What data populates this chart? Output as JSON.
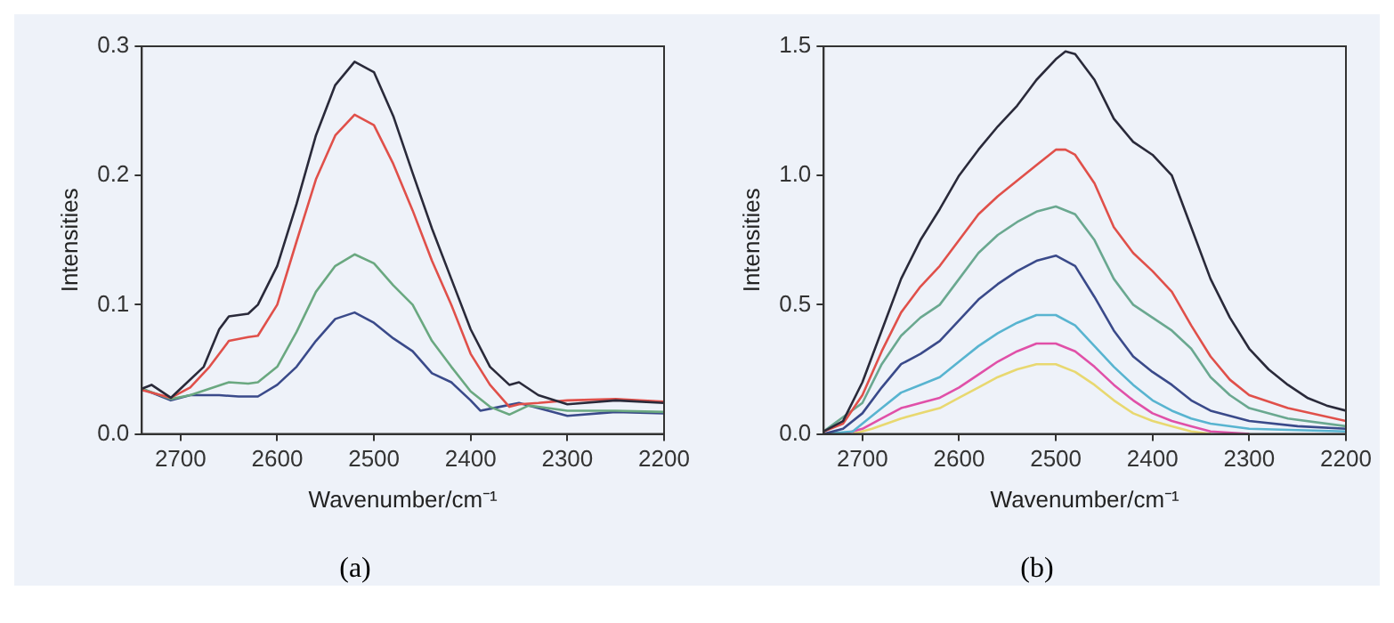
{
  "chart_data": [
    {
      "type": "line",
      "xlabel": "Wavenumber/cm⁻¹",
      "ylabel": "Intensities",
      "annotations": [
        "(a)"
      ],
      "xlim": [
        2740,
        2200
      ],
      "xticks": [
        2700,
        2600,
        2500,
        2400,
        2300,
        2200
      ],
      "ylim": [
        0,
        0.3
      ],
      "yticks": [
        {
          "value": 0,
          "label": "0.0"
        },
        0.1,
        0.2,
        0.3
      ],
      "grid": false,
      "legend": false,
      "marker": "none",
      "line_style": "solid",
      "series": [
        {
          "color": "#2a2a3a",
          "x": [
            2740,
            2730,
            2710,
            2700,
            2676,
            2660,
            2650,
            2630,
            2620,
            2600,
            2580,
            2560,
            2540,
            2520,
            2500,
            2480,
            2460,
            2440,
            2420,
            2400,
            2380,
            2360,
            2350,
            2330,
            2300,
            2250,
            2200
          ],
          "values": [
            0.035,
            0.038,
            0.028,
            0.035,
            0.052,
            0.081,
            0.091,
            0.093,
            0.1,
            0.13,
            0.178,
            0.231,
            0.27,
            0.288,
            0.28,
            0.246,
            0.202,
            0.159,
            0.12,
            0.081,
            0.052,
            0.038,
            0.04,
            0.03,
            0.023,
            0.026,
            0.024
          ]
        },
        {
          "color": "#e0504a",
          "x": [
            2740,
            2720,
            2710,
            2690,
            2670,
            2650,
            2630,
            2620,
            2600,
            2580,
            2560,
            2540,
            2520,
            2500,
            2480,
            2460,
            2440,
            2420,
            2400,
            2380,
            2360,
            2350,
            2330,
            2300,
            2250,
            2200
          ],
          "values": [
            0.034,
            0.03,
            0.028,
            0.036,
            0.052,
            0.072,
            0.075,
            0.076,
            0.1,
            0.149,
            0.197,
            0.231,
            0.247,
            0.239,
            0.209,
            0.173,
            0.134,
            0.1,
            0.062,
            0.038,
            0.021,
            0.023,
            0.024,
            0.026,
            0.027,
            0.025
          ]
        },
        {
          "color": "#6aa880",
          "x": [
            2740,
            2710,
            2690,
            2670,
            2650,
            2630,
            2620,
            2600,
            2580,
            2560,
            2540,
            2520,
            2500,
            2480,
            2460,
            2440,
            2420,
            2400,
            2380,
            2360,
            2340,
            2300,
            2250,
            2200
          ],
          "values": [
            0.035,
            0.027,
            0.03,
            0.035,
            0.04,
            0.039,
            0.04,
            0.052,
            0.079,
            0.11,
            0.13,
            0.139,
            0.132,
            0.115,
            0.1,
            0.072,
            0.052,
            0.033,
            0.021,
            0.015,
            0.022,
            0.018,
            0.018,
            0.017
          ]
        },
        {
          "color": "#3a4a8a",
          "x": [
            2740,
            2710,
            2690,
            2660,
            2640,
            2620,
            2600,
            2580,
            2560,
            2540,
            2520,
            2500,
            2480,
            2460,
            2440,
            2420,
            2400,
            2390,
            2370,
            2350,
            2330,
            2300,
            2250,
            2200
          ],
          "values": [
            0.035,
            0.026,
            0.03,
            0.03,
            0.029,
            0.029,
            0.038,
            0.052,
            0.072,
            0.089,
            0.094,
            0.086,
            0.074,
            0.064,
            0.047,
            0.04,
            0.026,
            0.018,
            0.021,
            0.024,
            0.02,
            0.014,
            0.017,
            0.016
          ]
        }
      ]
    },
    {
      "type": "line",
      "xlabel": "Wavenumber/cm⁻¹",
      "ylabel": "Intensities",
      "annotations": [
        "(b)"
      ],
      "xlim": [
        2740,
        2200
      ],
      "xticks": [
        2700,
        2600,
        2500,
        2400,
        2300,
        2200
      ],
      "ylim": [
        0,
        1.5
      ],
      "yticks": [
        {
          "value": 0,
          "label": "0.0"
        },
        {
          "value": 0.5,
          "label": "0.5"
        },
        {
          "value": 1,
          "label": "1.0"
        },
        1.5
      ],
      "grid": false,
      "legend": false,
      "marker": "none",
      "line_style": "solid",
      "series": [
        {
          "color": "#2a2a3a",
          "x": [
            2740,
            2720,
            2700,
            2680,
            2660,
            2640,
            2620,
            2600,
            2580,
            2560,
            2540,
            2520,
            2500,
            2490,
            2480,
            2460,
            2440,
            2420,
            2400,
            2380,
            2360,
            2340,
            2320,
            2300,
            2280,
            2260,
            2240,
            2220,
            2200
          ],
          "values": [
            0.01,
            0.05,
            0.2,
            0.4,
            0.6,
            0.75,
            0.87,
            1.0,
            1.1,
            1.19,
            1.27,
            1.37,
            1.45,
            1.48,
            1.47,
            1.37,
            1.22,
            1.13,
            1.08,
            1.0,
            0.8,
            0.6,
            0.45,
            0.33,
            0.25,
            0.19,
            0.14,
            0.11,
            0.09
          ]
        },
        {
          "color": "#e0504a",
          "x": [
            2740,
            2720,
            2700,
            2680,
            2660,
            2640,
            2620,
            2600,
            2580,
            2560,
            2540,
            2520,
            2500,
            2490,
            2480,
            2460,
            2440,
            2420,
            2400,
            2380,
            2360,
            2340,
            2320,
            2300,
            2260,
            2200
          ],
          "values": [
            0.01,
            0.04,
            0.15,
            0.32,
            0.47,
            0.57,
            0.65,
            0.75,
            0.85,
            0.92,
            0.98,
            1.04,
            1.1,
            1.1,
            1.08,
            0.97,
            0.8,
            0.7,
            0.63,
            0.55,
            0.42,
            0.3,
            0.21,
            0.15,
            0.1,
            0.05
          ]
        },
        {
          "color": "#6aa890",
          "x": [
            2740,
            2700,
            2680,
            2660,
            2640,
            2620,
            2600,
            2580,
            2560,
            2540,
            2520,
            2500,
            2480,
            2460,
            2440,
            2420,
            2400,
            2380,
            2360,
            2340,
            2320,
            2300,
            2260,
            2200
          ],
          "values": [
            0.01,
            0.12,
            0.27,
            0.38,
            0.45,
            0.5,
            0.6,
            0.7,
            0.77,
            0.82,
            0.86,
            0.88,
            0.85,
            0.75,
            0.6,
            0.5,
            0.45,
            0.4,
            0.33,
            0.22,
            0.15,
            0.1,
            0.06,
            0.03
          ]
        },
        {
          "color": "#3a4a8a",
          "x": [
            2740,
            2720,
            2700,
            2680,
            2660,
            2640,
            2620,
            2600,
            2580,
            2560,
            2540,
            2520,
            2500,
            2480,
            2460,
            2440,
            2420,
            2400,
            2380,
            2360,
            2340,
            2300,
            2250,
            2200
          ],
          "values": [
            0.0,
            0.02,
            0.08,
            0.18,
            0.27,
            0.31,
            0.36,
            0.44,
            0.52,
            0.58,
            0.63,
            0.67,
            0.69,
            0.65,
            0.53,
            0.4,
            0.3,
            0.24,
            0.19,
            0.13,
            0.09,
            0.05,
            0.03,
            0.02
          ]
        },
        {
          "color": "#58b4d0",
          "x": [
            2740,
            2710,
            2700,
            2680,
            2660,
            2640,
            2620,
            2600,
            2580,
            2560,
            2540,
            2520,
            2500,
            2480,
            2460,
            2440,
            2420,
            2400,
            2380,
            2360,
            2340,
            2300,
            2200
          ],
          "values": [
            0.0,
            0.01,
            0.04,
            0.1,
            0.16,
            0.19,
            0.22,
            0.28,
            0.34,
            0.39,
            0.43,
            0.46,
            0.46,
            0.42,
            0.34,
            0.26,
            0.19,
            0.13,
            0.09,
            0.06,
            0.04,
            0.02,
            0.01
          ]
        },
        {
          "color": "#e050a8",
          "x": [
            2720,
            2700,
            2680,
            2660,
            2640,
            2620,
            2600,
            2580,
            2560,
            2540,
            2520,
            2500,
            2480,
            2460,
            2440,
            2420,
            2400,
            2380,
            2360,
            2340,
            2300
          ],
          "values": [
            0.0,
            0.02,
            0.06,
            0.1,
            0.12,
            0.14,
            0.18,
            0.23,
            0.28,
            0.32,
            0.35,
            0.35,
            0.32,
            0.26,
            0.19,
            0.13,
            0.08,
            0.05,
            0.03,
            0.01,
            0.0
          ]
        },
        {
          "color": "#e8d870",
          "x": [
            2710,
            2690,
            2660,
            2640,
            2620,
            2600,
            2580,
            2560,
            2540,
            2520,
            2500,
            2480,
            2460,
            2440,
            2420,
            2400,
            2380,
            2360,
            2340
          ],
          "values": [
            0.0,
            0.02,
            0.06,
            0.08,
            0.1,
            0.14,
            0.18,
            0.22,
            0.25,
            0.27,
            0.27,
            0.24,
            0.19,
            0.13,
            0.08,
            0.05,
            0.03,
            0.01,
            0.0
          ]
        }
      ]
    }
  ]
}
